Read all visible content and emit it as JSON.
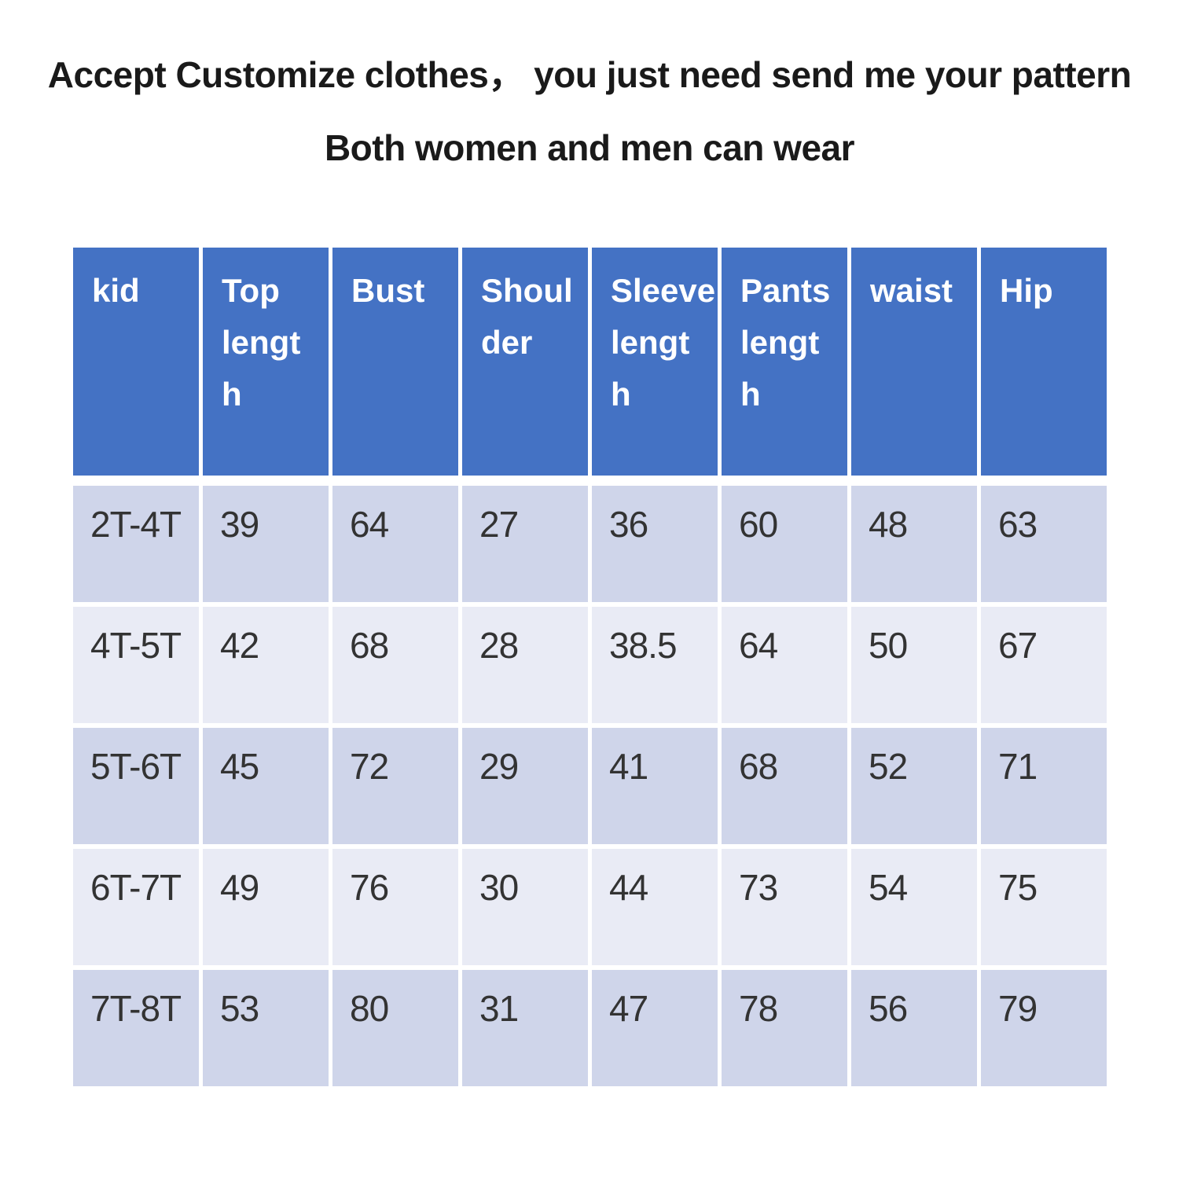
{
  "title": {
    "line1": "Accept Customize clothes， you just need send me your pattern",
    "line2": "Both women and men can wear"
  },
  "table": {
    "columns": [
      "kid",
      "Top\nlengt\nh",
      "Bust",
      "Shoul\nder",
      "Sleeve\nlengt\nh",
      "Pants\nlengt\nh",
      "waist",
      "Hip"
    ],
    "rows": [
      [
        "2T-4T",
        "39",
        "64",
        "27",
        "36",
        "60",
        "48",
        "63"
      ],
      [
        "4T-5T",
        "42",
        "68",
        "28",
        "38.5",
        "64",
        "50",
        "67"
      ],
      [
        "5T-6T",
        "45",
        "72",
        "29",
        "41",
        "68",
        "52",
        "71"
      ],
      [
        "6T-7T",
        "49",
        "76",
        "30",
        "44",
        "73",
        "54",
        "75"
      ],
      [
        "7T-8T",
        "53",
        "80",
        "31",
        "47",
        "78",
        "56",
        "79"
      ]
    ],
    "colors": {
      "header_bg": "#4472C4",
      "header_text": "#FFFFFF",
      "row_band_dark": "#CFD5EA",
      "row_band_light": "#E9EBF5",
      "body_text": "#333333"
    }
  }
}
